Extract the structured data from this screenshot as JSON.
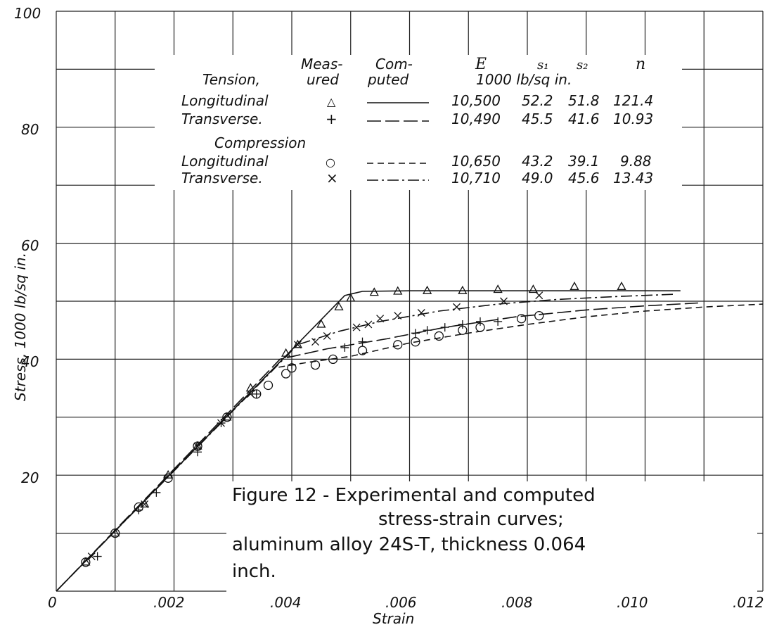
{
  "chart_data": {
    "type": "line",
    "xlabel": "Strain",
    "ylabel": "Stress, 1000 lb/sq in.",
    "xlim": [
      0,
      0.012
    ],
    "ylim": [
      0,
      100
    ],
    "x_ticks": [
      "0",
      ".002",
      ".004",
      ".006",
      ".008",
      ".010",
      ".012"
    ],
    "y_ticks": [
      "20",
      "40",
      "60",
      "80",
      "100"
    ],
    "grid": true,
    "caption": [
      "Figure 12 - Experimental and computed",
      "stress-strain curves;",
      "aluminum alloy 24S-T, thickness 0.064",
      "inch."
    ],
    "legend": {
      "headers": {
        "measured_1": "Meas-",
        "measured_2": "ured",
        "computed_1": "Com-",
        "computed_2": "puted",
        "E": "E",
        "s1": "s₁",
        "s2": "s₂",
        "n": "n",
        "units": "1000 lb/sq in."
      },
      "group_tension": "Tension,",
      "group_compression": "Compression",
      "rows": [
        {
          "label": "Longitudinal",
          "marker": "△",
          "E": "10,500",
          "s1": "52.2",
          "s2": "51.8",
          "n": "121.4"
        },
        {
          "label": "Transverse.",
          "marker": "+",
          "E": "10,490",
          "s1": "45.5",
          "s2": "41.6",
          "n": "10.93"
        },
        {
          "label": "Longitudinal",
          "marker": "○",
          "E": "10,650",
          "s1": "43.2",
          "s2": "39.1",
          "n": "9.88"
        },
        {
          "label": "Transverse.",
          "marker": "×",
          "E": "10,710",
          "s1": "49.0",
          "s2": "45.6",
          "n": "13.43"
        }
      ]
    },
    "series": [
      {
        "name": "Tension, Longitudinal",
        "marker": "triangle",
        "line": "solid",
        "measured": [
          [
            0.0005,
            5
          ],
          [
            0.001,
            10
          ],
          [
            0.0015,
            15
          ],
          [
            0.0019,
            20
          ],
          [
            0.0024,
            25
          ],
          [
            0.0029,
            30
          ],
          [
            0.0033,
            35
          ],
          [
            0.0039,
            41
          ],
          [
            0.0041,
            42.5
          ],
          [
            0.0045,
            46
          ],
          [
            0.0048,
            49
          ],
          [
            0.005,
            50.5
          ],
          [
            0.0054,
            51.5
          ],
          [
            0.0058,
            51.7
          ],
          [
            0.0063,
            51.8
          ],
          [
            0.0069,
            51.8
          ],
          [
            0.0075,
            52
          ],
          [
            0.0081,
            52
          ],
          [
            0.0088,
            52.5
          ],
          [
            0.0096,
            52.5
          ]
        ],
        "computed": [
          [
            0,
            0
          ],
          [
            0.0049,
            51
          ],
          [
            0.0052,
            51.7
          ],
          [
            0.006,
            51.8
          ],
          [
            0.008,
            51.8
          ],
          [
            0.0106,
            51.8
          ]
        ]
      },
      {
        "name": "Tension, Transverse",
        "marker": "plus",
        "line": "long-dash",
        "measured": [
          [
            0.0007,
            6
          ],
          [
            0.0014,
            14
          ],
          [
            0.0017,
            17
          ],
          [
            0.0024,
            24
          ],
          [
            0.0028,
            29
          ],
          [
            0.0034,
            34
          ],
          [
            0.004,
            39
          ],
          [
            0.0049,
            42
          ],
          [
            0.0052,
            43
          ],
          [
            0.0061,
            44.5
          ],
          [
            0.0063,
            45
          ],
          [
            0.0066,
            45.5
          ],
          [
            0.0069,
            46
          ],
          [
            0.0072,
            46.5
          ],
          [
            0.0075,
            46.5
          ]
        ],
        "computed": [
          [
            0,
            0
          ],
          [
            0.0038,
            40
          ],
          [
            0.0046,
            41.8
          ],
          [
            0.0056,
            43.5
          ],
          [
            0.0066,
            45.5
          ],
          [
            0.0078,
            47.3
          ],
          [
            0.009,
            48.5
          ],
          [
            0.01,
            49.2
          ],
          [
            0.0109,
            49.7
          ]
        ]
      },
      {
        "name": "Compression, Longitudinal",
        "marker": "circle",
        "line": "short-dash",
        "measured": [
          [
            0.0005,
            5
          ],
          [
            0.001,
            10
          ],
          [
            0.0014,
            14.5
          ],
          [
            0.0019,
            19.5
          ],
          [
            0.0024,
            25
          ],
          [
            0.0029,
            30
          ],
          [
            0.0034,
            34
          ],
          [
            0.0036,
            35.5
          ],
          [
            0.0039,
            37.5
          ],
          [
            0.004,
            38.5
          ],
          [
            0.0044,
            39
          ],
          [
            0.0047,
            40
          ],
          [
            0.0052,
            41.5
          ],
          [
            0.0058,
            42.5
          ],
          [
            0.0061,
            43
          ],
          [
            0.0065,
            44
          ],
          [
            0.0069,
            45
          ],
          [
            0.0072,
            45.5
          ],
          [
            0.0079,
            47
          ],
          [
            0.0082,
            47.5
          ]
        ],
        "computed": [
          [
            0,
            0
          ],
          [
            0.0037,
            38.5
          ],
          [
            0.0043,
            39.5
          ],
          [
            0.005,
            40.5
          ],
          [
            0.006,
            42.8
          ],
          [
            0.007,
            44.5
          ],
          [
            0.008,
            46
          ],
          [
            0.009,
            47.3
          ],
          [
            0.01,
            48.3
          ],
          [
            0.011,
            49
          ],
          [
            0.012,
            49.5
          ]
        ]
      },
      {
        "name": "Compression, Transverse",
        "marker": "cross",
        "line": "dash-dot",
        "measured": [
          [
            0.0006,
            6
          ],
          [
            0.0015,
            15
          ],
          [
            0.0024,
            25
          ],
          [
            0.0028,
            29
          ],
          [
            0.0033,
            34
          ],
          [
            0.0041,
            42.5
          ],
          [
            0.0044,
            43
          ],
          [
            0.0046,
            44
          ],
          [
            0.0051,
            45.5
          ],
          [
            0.0053,
            46
          ],
          [
            0.0055,
            47
          ],
          [
            0.0058,
            47.5
          ],
          [
            0.0062,
            48
          ],
          [
            0.0068,
            49
          ],
          [
            0.0076,
            50
          ],
          [
            0.0082,
            51
          ]
        ],
        "computed": [
          [
            0,
            0
          ],
          [
            0.0041,
            42.5
          ],
          [
            0.0048,
            44.8
          ],
          [
            0.0055,
            46.5
          ],
          [
            0.0065,
            48.3
          ],
          [
            0.0075,
            49.5
          ],
          [
            0.0085,
            50.3
          ],
          [
            0.0095,
            50.8
          ],
          [
            0.0105,
            51.2
          ]
        ]
      }
    ]
  }
}
